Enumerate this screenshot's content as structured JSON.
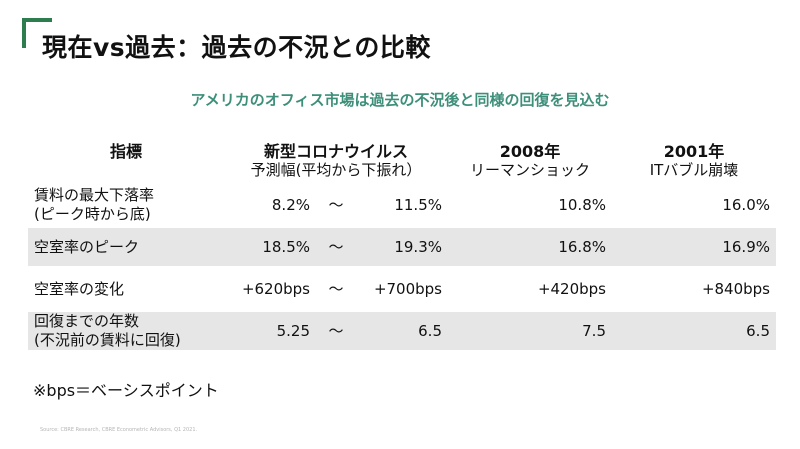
{
  "title": "現在vs過去：過去の不況との比較",
  "subtitle": "アメリカのオフィス市場は過去の不況後と同様の回復を見込む",
  "table": {
    "headers": {
      "indicator": "指標",
      "covid_title": "新型コロナウイルス",
      "covid_sub": "予測幅(平均から下振れ）",
      "gfc_title": "2008年",
      "gfc_sub": "リーマンショック",
      "dotcom_title": "2001年",
      "dotcom_sub": "ITバブル崩壊"
    },
    "rows": [
      {
        "label_line1": "賃料の最大下落率",
        "label_line2": "(ピーク時から底)",
        "covid_low": "8.2%",
        "tilde": "～",
        "covid_high": "11.5%",
        "gfc": "10.8%",
        "dotcom": "16.0%"
      },
      {
        "label_line1": "空室率のピーク",
        "label_line2": "",
        "covid_low": "18.5%",
        "tilde": "～",
        "covid_high": "19.3%",
        "gfc": "16.8%",
        "dotcom": "16.9%"
      },
      {
        "label_line1": "空室率の変化",
        "label_line2": "",
        "covid_low": "+620bps",
        "tilde": "～",
        "covid_high": "+700bps",
        "gfc": "+420bps",
        "dotcom": "+840bps"
      },
      {
        "label_line1": "回復までの年数",
        "label_line2": "(不況前の賃料に回復)",
        "covid_low": "5.25",
        "tilde": "～",
        "covid_high": "6.5",
        "gfc": "7.5",
        "dotcom": "6.5"
      }
    ]
  },
  "footnote": "※bps＝ベーシスポイント",
  "source": "Source: CBRE Research, CBRE Econometric Advisors, Q1 2021.",
  "colors": {
    "accent": "#2e7d4f",
    "subtitle": "#3d8f7a",
    "row_shade": "#e6e6e6"
  }
}
